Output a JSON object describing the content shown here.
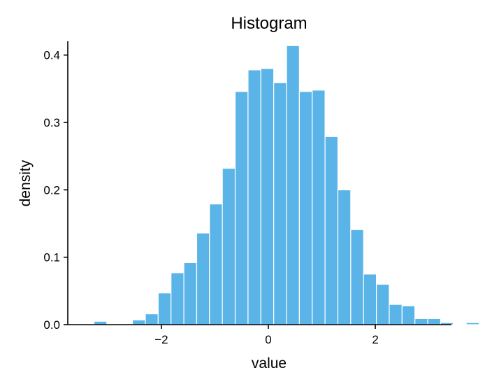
{
  "chart_data": {
    "type": "bar",
    "title": "Histogram",
    "xlabel": "value",
    "ylabel": "density",
    "xlim": [
      -3.75,
      3.75
    ],
    "ylim": [
      0,
      0.435
    ],
    "bin_width": 0.24,
    "bins_start": -3.5,
    "x_ticks": [
      {
        "value": -2,
        "label": "−2"
      },
      {
        "value": 0,
        "label": "0"
      },
      {
        "value": 2,
        "label": "2"
      }
    ],
    "y_ticks": [
      {
        "value": 0.0,
        "label": "0.0"
      },
      {
        "value": 0.1,
        "label": "0.1"
      },
      {
        "value": 0.2,
        "label": "0.2"
      },
      {
        "value": 0.3,
        "label": "0.3"
      },
      {
        "value": 0.4,
        "label": "0.4"
      }
    ],
    "values": [
      0.0,
      0.005,
      0.001,
      0.0,
      0.007,
      0.016,
      0.047,
      0.077,
      0.092,
      0.136,
      0.179,
      0.232,
      0.346,
      0.378,
      0.38,
      0.359,
      0.414,
      0.346,
      0.348,
      0.279,
      0.2,
      0.141,
      0.075,
      0.06,
      0.03,
      0.028,
      0.009,
      0.009,
      0.003,
      0.001,
      0.003
    ],
    "grid": false,
    "legend": "none",
    "colors": {
      "bar": "#5AB4E8",
      "bar_border": "#ffffff"
    }
  }
}
